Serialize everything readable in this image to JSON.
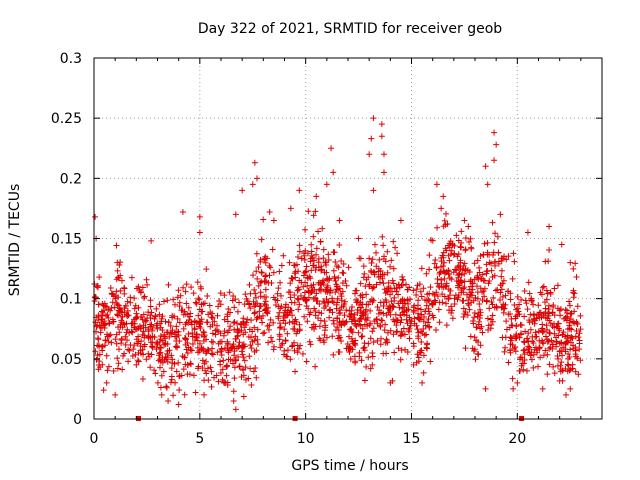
{
  "chart_data": {
    "type": "scatter",
    "title": "Day 322 of 2021, SRMTID for receiver geob",
    "xlabel": "GPS time / hours",
    "ylabel": "SRMTID / TECUs",
    "xlim": [
      0,
      24
    ],
    "ylim": [
      0,
      0.3
    ],
    "xticks": [
      0,
      5,
      10,
      15,
      20
    ],
    "xtick_labels": [
      "0",
      "5",
      "10",
      "15",
      "20"
    ],
    "yticks": [
      0,
      0.05,
      0.1,
      0.15,
      0.2,
      0.25,
      0.3
    ],
    "ytick_labels": [
      "0",
      "0.05",
      "0.1",
      "0.15",
      "0.2",
      "0.25",
      "0.3"
    ],
    "grid": true,
    "marker": "+",
    "color": "#e00000",
    "zero_markers_x": [
      2.1,
      9.5,
      20.2
    ],
    "profile": {
      "x": [
        0.0,
        0.5,
        1.0,
        1.5,
        2.0,
        2.5,
        3.0,
        3.5,
        4.0,
        4.5,
        5.0,
        5.5,
        6.0,
        6.5,
        7.0,
        7.5,
        8.0,
        8.5,
        9.0,
        9.5,
        10.0,
        10.5,
        11.0,
        11.5,
        12.0,
        12.5,
        13.0,
        13.5,
        14.0,
        14.5,
        15.0,
        15.5,
        16.0,
        16.5,
        17.0,
        17.5,
        18.0,
        18.5,
        19.0,
        19.5,
        20.0,
        20.5,
        21.0,
        21.5,
        22.0,
        22.5,
        23.0
      ],
      "mean": [
        0.085,
        0.075,
        0.09,
        0.085,
        0.075,
        0.08,
        0.065,
        0.06,
        0.065,
        0.075,
        0.075,
        0.065,
        0.06,
        0.06,
        0.065,
        0.075,
        0.11,
        0.095,
        0.085,
        0.09,
        0.11,
        0.11,
        0.1,
        0.1,
        0.08,
        0.08,
        0.095,
        0.09,
        0.1,
        0.09,
        0.085,
        0.08,
        0.105,
        0.12,
        0.125,
        0.115,
        0.095,
        0.11,
        0.12,
        0.095,
        0.075,
        0.075,
        0.07,
        0.085,
        0.065,
        0.075,
        0.075
      ],
      "spread": [
        0.03,
        0.025,
        0.025,
        0.025,
        0.025,
        0.025,
        0.025,
        0.025,
        0.025,
        0.025,
        0.025,
        0.025,
        0.025,
        0.025,
        0.025,
        0.03,
        0.03,
        0.03,
        0.03,
        0.03,
        0.035,
        0.035,
        0.03,
        0.03,
        0.025,
        0.025,
        0.04,
        0.035,
        0.03,
        0.025,
        0.025,
        0.025,
        0.03,
        0.03,
        0.03,
        0.03,
        0.03,
        0.035,
        0.035,
        0.03,
        0.025,
        0.025,
        0.025,
        0.03,
        0.025,
        0.025,
        0.025
      ],
      "points_per_hour": 90
    },
    "peaks": [
      {
        "x": 0.05,
        "y": 0.168
      },
      {
        "x": 0.1,
        "y": 0.15
      },
      {
        "x": 1.1,
        "y": 0.13
      },
      {
        "x": 2.7,
        "y": 0.148
      },
      {
        "x": 4.2,
        "y": 0.172
      },
      {
        "x": 5.0,
        "y": 0.168
      },
      {
        "x": 5.0,
        "y": 0.155
      },
      {
        "x": 6.7,
        "y": 0.17
      },
      {
        "x": 7.0,
        "y": 0.19
      },
      {
        "x": 7.5,
        "y": 0.195
      },
      {
        "x": 7.6,
        "y": 0.213
      },
      {
        "x": 7.7,
        "y": 0.2
      },
      {
        "x": 8.3,
        "y": 0.172
      },
      {
        "x": 8.5,
        "y": 0.165
      },
      {
        "x": 9.3,
        "y": 0.175
      },
      {
        "x": 9.7,
        "y": 0.19
      },
      {
        "x": 10.5,
        "y": 0.185
      },
      {
        "x": 11.0,
        "y": 0.195
      },
      {
        "x": 11.2,
        "y": 0.225
      },
      {
        "x": 11.3,
        "y": 0.205
      },
      {
        "x": 11.6,
        "y": 0.165
      },
      {
        "x": 12.5,
        "y": 0.15
      },
      {
        "x": 13.0,
        "y": 0.22
      },
      {
        "x": 13.1,
        "y": 0.233
      },
      {
        "x": 13.2,
        "y": 0.25
      },
      {
        "x": 13.6,
        "y": 0.245
      },
      {
        "x": 13.6,
        "y": 0.235
      },
      {
        "x": 13.7,
        "y": 0.22
      },
      {
        "x": 13.7,
        "y": 0.205
      },
      {
        "x": 13.2,
        "y": 0.19
      },
      {
        "x": 14.5,
        "y": 0.165
      },
      {
        "x": 16.2,
        "y": 0.195
      },
      {
        "x": 16.5,
        "y": 0.185
      },
      {
        "x": 16.4,
        "y": 0.175
      },
      {
        "x": 17.5,
        "y": 0.165
      },
      {
        "x": 18.5,
        "y": 0.21
      },
      {
        "x": 18.6,
        "y": 0.195
      },
      {
        "x": 18.9,
        "y": 0.238
      },
      {
        "x": 19.0,
        "y": 0.228
      },
      {
        "x": 18.9,
        "y": 0.215
      },
      {
        "x": 19.2,
        "y": 0.17
      },
      {
        "x": 20.5,
        "y": 0.155
      },
      {
        "x": 21.5,
        "y": 0.16
      },
      {
        "x": 22.1,
        "y": 0.145
      },
      {
        "x": 22.5,
        "y": 0.13
      }
    ],
    "lows": [
      {
        "x": 0.6,
        "y": 0.03
      },
      {
        "x": 1.0,
        "y": 0.02
      },
      {
        "x": 2.0,
        "y": 0.045
      },
      {
        "x": 3.2,
        "y": 0.02
      },
      {
        "x": 3.5,
        "y": 0.015
      },
      {
        "x": 4.0,
        "y": 0.012
      },
      {
        "x": 4.8,
        "y": 0.022
      },
      {
        "x": 5.2,
        "y": 0.02
      },
      {
        "x": 6.2,
        "y": 0.03
      },
      {
        "x": 6.6,
        "y": 0.015
      },
      {
        "x": 6.7,
        "y": 0.008
      },
      {
        "x": 12.8,
        "y": 0.032
      },
      {
        "x": 14.0,
        "y": 0.03
      },
      {
        "x": 15.5,
        "y": 0.03
      },
      {
        "x": 18.5,
        "y": 0.025
      },
      {
        "x": 19.8,
        "y": 0.025
      },
      {
        "x": 20.0,
        "y": 0.03
      },
      {
        "x": 21.2,
        "y": 0.025
      },
      {
        "x": 22.3,
        "y": 0.02
      },
      {
        "x": 22.5,
        "y": 0.025
      }
    ]
  }
}
